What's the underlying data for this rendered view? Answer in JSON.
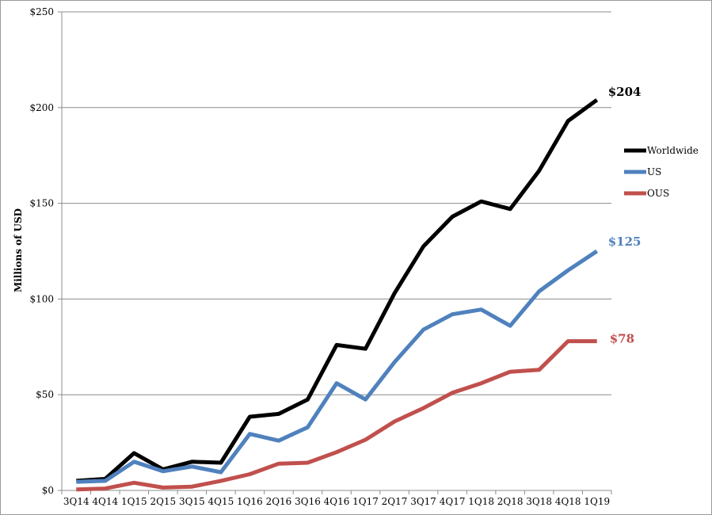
{
  "chart_data": {
    "type": "line",
    "title": "",
    "xlabel": "",
    "ylabel": "Millions of USD",
    "ylim": [
      0,
      250
    ],
    "yticks": [
      0,
      50,
      100,
      150,
      200,
      250
    ],
    "ytick_labels": [
      "$0",
      "$50",
      "$100",
      "$150",
      "$200",
      "$250"
    ],
    "grid": "horizontal",
    "legend_position": "right",
    "categories": [
      "3Q14",
      "4Q14",
      "1Q15",
      "2Q15",
      "3Q15",
      "4Q15",
      "1Q16",
      "2Q16",
      "3Q16",
      "4Q16",
      "1Q17",
      "2Q17",
      "3Q17",
      "4Q17",
      "1Q18",
      "2Q18",
      "3Q18",
      "4Q18",
      "1Q19"
    ],
    "series": [
      {
        "name": "Worldwide",
        "color": "#000000",
        "values": [
          5,
          6,
          19.5,
          11,
          15,
          14.5,
          38.5,
          40,
          47.5,
          76,
          74,
          103,
          127.5,
          143,
          151,
          147,
          167,
          193,
          204
        ],
        "end_label": "$204"
      },
      {
        "name": "US",
        "color": "#4f81bd",
        "values": [
          4.5,
          5,
          15,
          10,
          12.5,
          9.5,
          29.5,
          26,
          33,
          56,
          47.5,
          67,
          84,
          92,
          94.5,
          86,
          104,
          115,
          125
        ],
        "end_label": "$125"
      },
      {
        "name": "OUS",
        "color": "#c0504d",
        "values": [
          0.5,
          1,
          4,
          1.5,
          2,
          5,
          8.5,
          14,
          14.5,
          20,
          26.5,
          36,
          43,
          51,
          56,
          62,
          63,
          78,
          78
        ],
        "end_label": "$78"
      }
    ]
  }
}
